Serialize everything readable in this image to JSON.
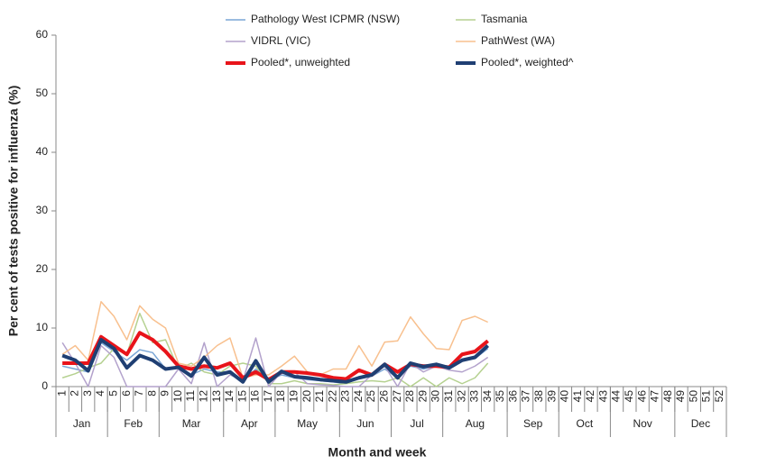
{
  "chart_data": {
    "type": "line",
    "y_label": "Per cent of tests positive for influenza (%)",
    "x_label": "Month and week",
    "categories": [
      1,
      2,
      3,
      4,
      5,
      6,
      7,
      8,
      9,
      10,
      11,
      12,
      13,
      14,
      15,
      16,
      17,
      18,
      19,
      20,
      21,
      22,
      23,
      24,
      25,
      26,
      27,
      28,
      29,
      30,
      31,
      32,
      33,
      34,
      35,
      36,
      37,
      38,
      39,
      40,
      41,
      42,
      43,
      44,
      45,
      46,
      47,
      48,
      49,
      50,
      51,
      52
    ],
    "months": [
      "Jan",
      "Feb",
      "Mar",
      "Apr",
      "May",
      "Jun",
      "Jul",
      "Aug",
      "Sep",
      "Oct",
      "Nov",
      "Dec"
    ],
    "ylim": [
      0,
      60
    ],
    "yticks": [
      0,
      10,
      20,
      30,
      40,
      50,
      60
    ],
    "series": [
      {
        "name": "Pathology West ICPMR (NSW)",
        "color": "#7aa6d6",
        "width": 1.5,
        "values": [
          3.5,
          3,
          2.5,
          7.5,
          6,
          4.5,
          6.3,
          5.8,
          3,
          3.2,
          2,
          3,
          2.5,
          2.5,
          1,
          3,
          1,
          2,
          1.5,
          1.2,
          1,
          0.8,
          0.5,
          1.5,
          1.8,
          3,
          1.5,
          3.5,
          3,
          3.5,
          3,
          4.5,
          4.8,
          6.5,
          null,
          null,
          null,
          null,
          null,
          null,
          null,
          null,
          null,
          null,
          null,
          null,
          null,
          null,
          null,
          null,
          null,
          null
        ]
      },
      {
        "name": "Tasmania",
        "color": "#b5d190",
        "width": 1.5,
        "values": [
          1.5,
          2.2,
          3.2,
          4,
          6.5,
          5.5,
          12.5,
          7.5,
          8,
          3,
          4,
          2.5,
          2,
          3.5,
          4,
          3.5,
          0.5,
          0.5,
          1,
          0.5,
          0.5,
          0.3,
          0.5,
          0.8,
          1,
          0.8,
          1.5,
          0,
          1.5,
          0,
          1.5,
          0.5,
          1.5,
          4,
          null,
          null,
          null,
          null,
          null,
          null,
          null,
          null,
          null,
          null,
          null,
          null,
          null,
          null,
          null,
          null,
          null,
          null
        ]
      },
      {
        "name": "VIDRL (VIC)",
        "color": "#b3a2cc",
        "width": 1.5,
        "values": [
          7.5,
          4,
          0,
          7,
          5,
          0,
          0,
          0,
          0,
          3,
          0.5,
          7.5,
          0,
          2,
          1,
          8.3,
          0,
          2.5,
          2.5,
          0.5,
          0.3,
          0.2,
          0,
          0,
          2,
          3.5,
          0,
          4,
          2.5,
          3.5,
          2.8,
          2.5,
          3.5,
          5,
          null,
          null,
          null,
          null,
          null,
          null,
          null,
          null,
          null,
          null,
          null,
          null,
          null,
          null,
          null,
          null,
          null,
          null
        ]
      },
      {
        "name": "PathWest (WA)",
        "color": "#f8c08e",
        "width": 1.5,
        "values": [
          5.5,
          7,
          4.5,
          14.5,
          12,
          8,
          13.8,
          11.5,
          10,
          4,
          3.5,
          5,
          7,
          8.3,
          1.5,
          2,
          2,
          3.5,
          5.2,
          2.5,
          2,
          3,
          3,
          7,
          3.5,
          7.6,
          7.8,
          11.9,
          9,
          6.5,
          6.3,
          11.3,
          12,
          11,
          null,
          null,
          null,
          null,
          null,
          null,
          null,
          null,
          null,
          null,
          null,
          null,
          null,
          null,
          null,
          null,
          null,
          null
        ]
      },
      {
        "name": "Pooled*, unweighted",
        "color": "#e8141a",
        "width": 4,
        "values": [
          4,
          4,
          4,
          8.5,
          7,
          5.5,
          9.2,
          8,
          6,
          3.5,
          3,
          3.5,
          3.2,
          4,
          1.5,
          2.5,
          1.2,
          2.5,
          2.5,
          2.3,
          2,
          1.5,
          1.3,
          2.8,
          2,
          3.8,
          2.5,
          3.8,
          3.5,
          3.5,
          3.3,
          5.5,
          6,
          7.8,
          null,
          null,
          null,
          null,
          null,
          null,
          null,
          null,
          null,
          null,
          null,
          null,
          null,
          null,
          null,
          null,
          null,
          null
        ]
      },
      {
        "name": "Pooled*, weighted^",
        "color": "#1f3f73",
        "width": 4,
        "values": [
          5.3,
          4.5,
          2.7,
          8,
          6.5,
          3.2,
          5.3,
          4.5,
          3,
          3.3,
          1.8,
          5,
          2,
          2.5,
          0.8,
          4.4,
          0.8,
          2.6,
          1.7,
          1.5,
          1.2,
          1,
          0.8,
          1.5,
          2,
          3.8,
          1.5,
          4,
          3.4,
          3.8,
          3.2,
          4.5,
          5,
          7,
          null,
          null,
          null,
          null,
          null,
          null,
          null,
          null,
          null,
          null,
          null,
          null,
          null,
          null,
          null,
          null,
          null,
          null
        ]
      }
    ]
  }
}
